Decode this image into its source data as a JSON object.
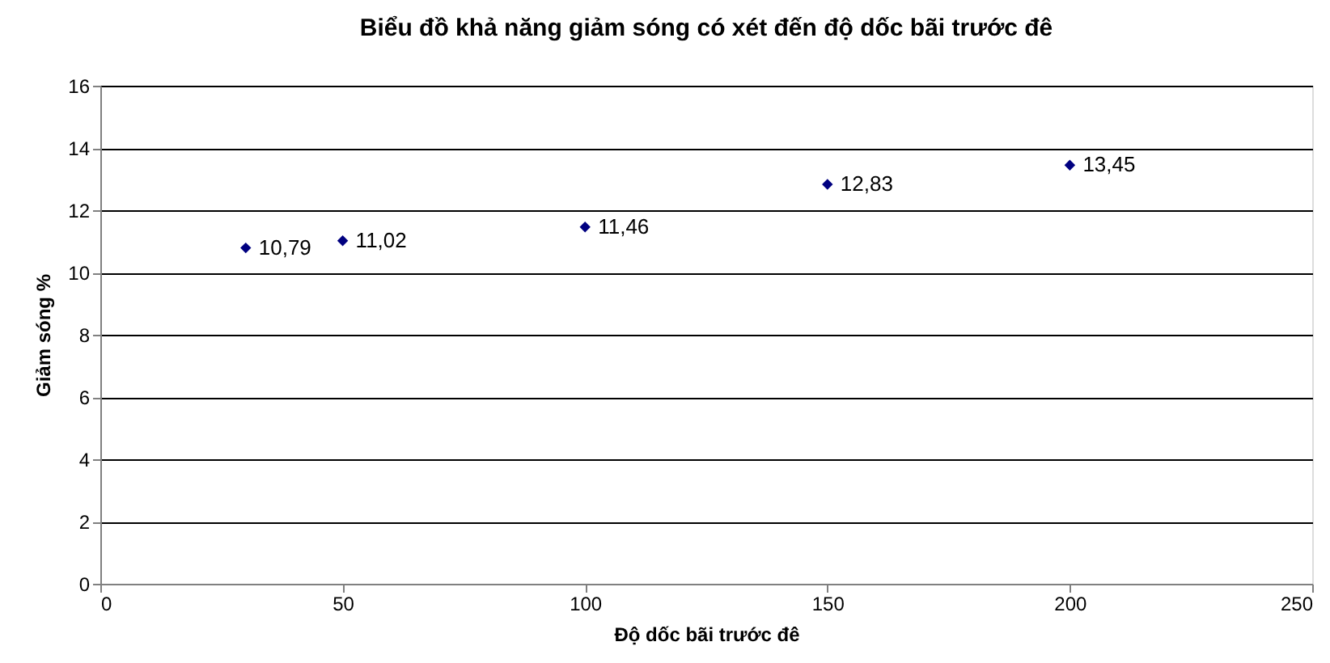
{
  "chart_data": {
    "type": "scatter",
    "title": "Biểu đồ khả năng giảm sóng có xét đến độ dốc bãi trước đê",
    "xlabel": "Độ dốc bãi trước đê",
    "ylabel": "Giảm sóng %",
    "x": [
      30,
      50,
      100,
      150,
      200
    ],
    "series": [
      {
        "color": "#000080",
        "values": [
          10.79,
          11.02,
          11.46,
          12.83,
          13.45
        ],
        "value_labels": [
          "10,79",
          "11,02",
          "11,46",
          "12,83",
          "13,45"
        ]
      }
    ],
    "xlim": [
      0,
      250
    ],
    "xticks": [
      0,
      50,
      100,
      150,
      200,
      250
    ],
    "ylim": [
      0,
      16
    ],
    "yticks": [
      0,
      2,
      4,
      6,
      8,
      10,
      12,
      14,
      16
    ],
    "grid": "y",
    "marker": "diamond"
  }
}
